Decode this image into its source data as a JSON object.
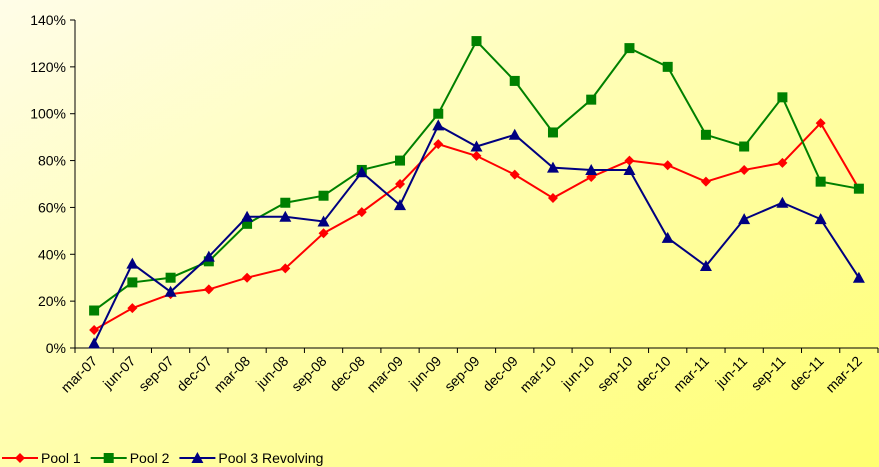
{
  "chart_data": {
    "type": "line",
    "categories": [
      "mar-07",
      "jun-07",
      "sep-07",
      "dec-07",
      "mar-08",
      "jun-08",
      "sep-08",
      "dec-08",
      "mar-09",
      "jun-09",
      "sep-09",
      "dec-09",
      "mar-10",
      "jun-10",
      "sep-10",
      "dec-10",
      "mar-11",
      "jun-11",
      "sep-11",
      "dec-11",
      "mar-12"
    ],
    "series": [
      {
        "name": "Pool 1",
        "color": "#ff0000",
        "marker": "diamond",
        "values": [
          7.7,
          17,
          23,
          25,
          30,
          34,
          49,
          58,
          70,
          87,
          82,
          74,
          64,
          73,
          80,
          78,
          71,
          76,
          79,
          96,
          68
        ]
      },
      {
        "name": "Pool 2",
        "color": "#008000",
        "marker": "square",
        "values": [
          16,
          28,
          30,
          37,
          53,
          62,
          65,
          76,
          80,
          100,
          131,
          114,
          92,
          106,
          128,
          120,
          91,
          86,
          107,
          71,
          68
        ]
      },
      {
        "name": "Pool 3 Revolving",
        "color": "#000080",
        "marker": "triangle",
        "values": [
          2,
          36,
          24,
          39,
          56,
          56,
          54,
          75,
          61,
          95,
          86,
          91,
          77,
          76,
          76,
          47,
          35,
          55,
          62,
          55,
          30
        ]
      }
    ],
    "ylim": [
      0,
      140
    ],
    "yticks": [
      {
        "value": 0,
        "label": "0%"
      },
      {
        "value": 20,
        "label": "20%"
      },
      {
        "value": 40,
        "label": "40%"
      },
      {
        "value": 60,
        "label": "60%"
      },
      {
        "value": 80,
        "label": "80%"
      },
      {
        "value": 100,
        "label": "100%"
      },
      {
        "value": 120,
        "label": "120%"
      },
      {
        "value": 140,
        "label": "140%"
      }
    ],
    "grid": false,
    "legend": "bottom-left"
  }
}
